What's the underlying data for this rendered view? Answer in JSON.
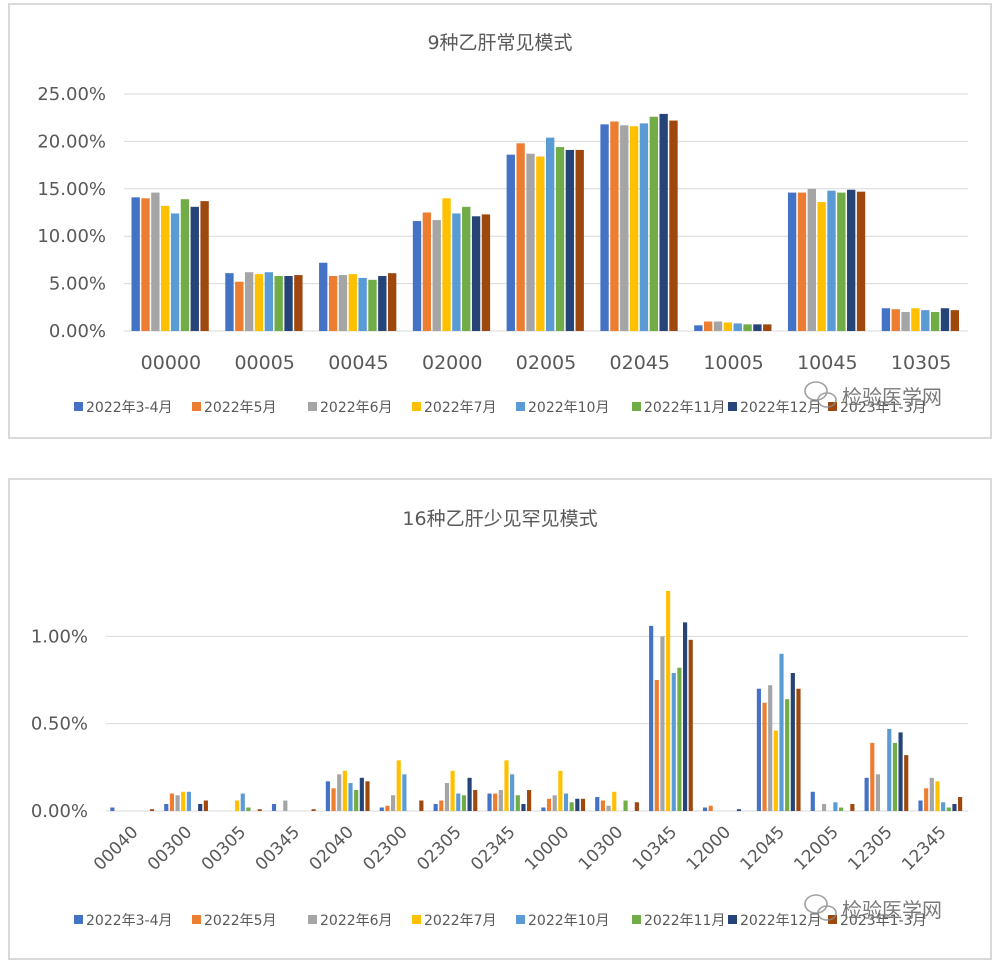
{
  "watermark": {
    "text": "检验医学网",
    "icon": "wechat-icon"
  },
  "chart_data": [
    {
      "type": "bar",
      "title": "9种乙肝常见模式",
      "categories": [
        "00000",
        "00005",
        "00045",
        "02000",
        "02005",
        "02045",
        "10005",
        "10045",
        "10305"
      ],
      "ylim": [
        0,
        25
      ],
      "yticks": [
        "0.00%",
        "5.00%",
        "10.00%",
        "15.00%",
        "20.00%",
        "25.00%"
      ],
      "grid": true,
      "legend_position": "bottom",
      "series": [
        {
          "name": "2022年3-4月",
          "color": "#4472c4",
          "values": [
            14.1,
            6.1,
            7.2,
            11.6,
            18.6,
            21.8,
            0.6,
            14.6,
            2.4
          ]
        },
        {
          "name": "2022年5月",
          "color": "#ed7d31",
          "values": [
            14.0,
            5.2,
            5.8,
            12.5,
            19.8,
            22.1,
            1.0,
            14.6,
            2.3
          ]
        },
        {
          "name": "2022年6月",
          "color": "#a5a5a5",
          "values": [
            14.6,
            6.2,
            5.9,
            11.7,
            18.7,
            21.7,
            1.0,
            15.0,
            2.0
          ]
        },
        {
          "name": "2022年7月",
          "color": "#ffc000",
          "values": [
            13.2,
            6.0,
            6.0,
            14.0,
            18.4,
            21.6,
            0.9,
            13.6,
            2.4
          ]
        },
        {
          "name": "2022年10月",
          "color": "#5b9bd5",
          "values": [
            12.4,
            6.2,
            5.6,
            12.4,
            20.4,
            21.9,
            0.8,
            14.8,
            2.2
          ]
        },
        {
          "name": "2022年11月",
          "color": "#70ad47",
          "values": [
            13.9,
            5.8,
            5.4,
            13.1,
            19.4,
            22.6,
            0.7,
            14.6,
            2.0
          ]
        },
        {
          "name": "2022年12月",
          "color": "#264478",
          "values": [
            13.1,
            5.8,
            5.8,
            12.1,
            19.1,
            22.9,
            0.7,
            14.9,
            2.4
          ]
        },
        {
          "name": "2023年1-3月",
          "color": "#9e480e",
          "values": [
            13.7,
            5.9,
            6.1,
            12.3,
            19.1,
            22.2,
            0.7,
            14.7,
            2.2
          ]
        }
      ]
    },
    {
      "type": "bar",
      "title": "16种乙肝少见罕见模式",
      "categories": [
        "00040",
        "00300",
        "00305",
        "00345",
        "02040",
        "02300",
        "02305",
        "02345",
        "10000",
        "10300",
        "10345",
        "12000",
        "12045",
        "12005",
        "12305",
        "12345"
      ],
      "ylim": [
        0,
        1.5
      ],
      "yticks": [
        "0.00%",
        "0.50%",
        "1.00%"
      ],
      "grid": true,
      "legend_position": "bottom",
      "series": [
        {
          "name": "2022年3-4月",
          "color": "#4472c4",
          "values": [
            0.02,
            0.04,
            0.0,
            0.04,
            0.17,
            0.02,
            0.04,
            0.1,
            0.02,
            0.08,
            1.06,
            0.02,
            0.7,
            0.11,
            0.19,
            0.06
          ]
        },
        {
          "name": "2022年5月",
          "color": "#ed7d31",
          "values": [
            0.0,
            0.1,
            0.0,
            0.0,
            0.13,
            0.03,
            0.06,
            0.1,
            0.07,
            0.06,
            0.75,
            0.03,
            0.62,
            0.0,
            0.39,
            0.13
          ]
        },
        {
          "name": "2022年6月",
          "color": "#a5a5a5",
          "values": [
            0.0,
            0.09,
            0.0,
            0.06,
            0.21,
            0.09,
            0.16,
            0.12,
            0.09,
            0.03,
            1.0,
            0.0,
            0.72,
            0.04,
            0.21,
            0.19
          ]
        },
        {
          "name": "2022年7月",
          "color": "#ffc000",
          "values": [
            0.0,
            0.11,
            0.06,
            0.0,
            0.23,
            0.29,
            0.23,
            0.29,
            0.23,
            0.11,
            1.26,
            0.0,
            0.46,
            0.0,
            0.0,
            0.17
          ]
        },
        {
          "name": "2022年10月",
          "color": "#5b9bd5",
          "values": [
            0.0,
            0.11,
            0.1,
            0.0,
            0.16,
            0.21,
            0.1,
            0.21,
            0.1,
            0.0,
            0.79,
            0.0,
            0.9,
            0.05,
            0.47,
            0.05
          ]
        },
        {
          "name": "2022年11月",
          "color": "#70ad47",
          "values": [
            0.0,
            0.0,
            0.02,
            0.0,
            0.12,
            0.0,
            0.09,
            0.09,
            0.05,
            0.06,
            0.82,
            0.0,
            0.64,
            0.02,
            0.39,
            0.02
          ]
        },
        {
          "name": "2022年12月",
          "color": "#264478",
          "values": [
            0.0,
            0.04,
            0.0,
            0.0,
            0.19,
            0.0,
            0.19,
            0.04,
            0.07,
            0.0,
            1.08,
            0.01,
            0.79,
            0.0,
            0.45,
            0.04
          ]
        },
        {
          "name": "2023年1-3月",
          "color": "#9e480e",
          "values": [
            0.01,
            0.06,
            0.01,
            0.01,
            0.17,
            0.06,
            0.12,
            0.12,
            0.07,
            0.05,
            0.98,
            0.0,
            0.7,
            0.04,
            0.32,
            0.08
          ]
        }
      ]
    }
  ]
}
